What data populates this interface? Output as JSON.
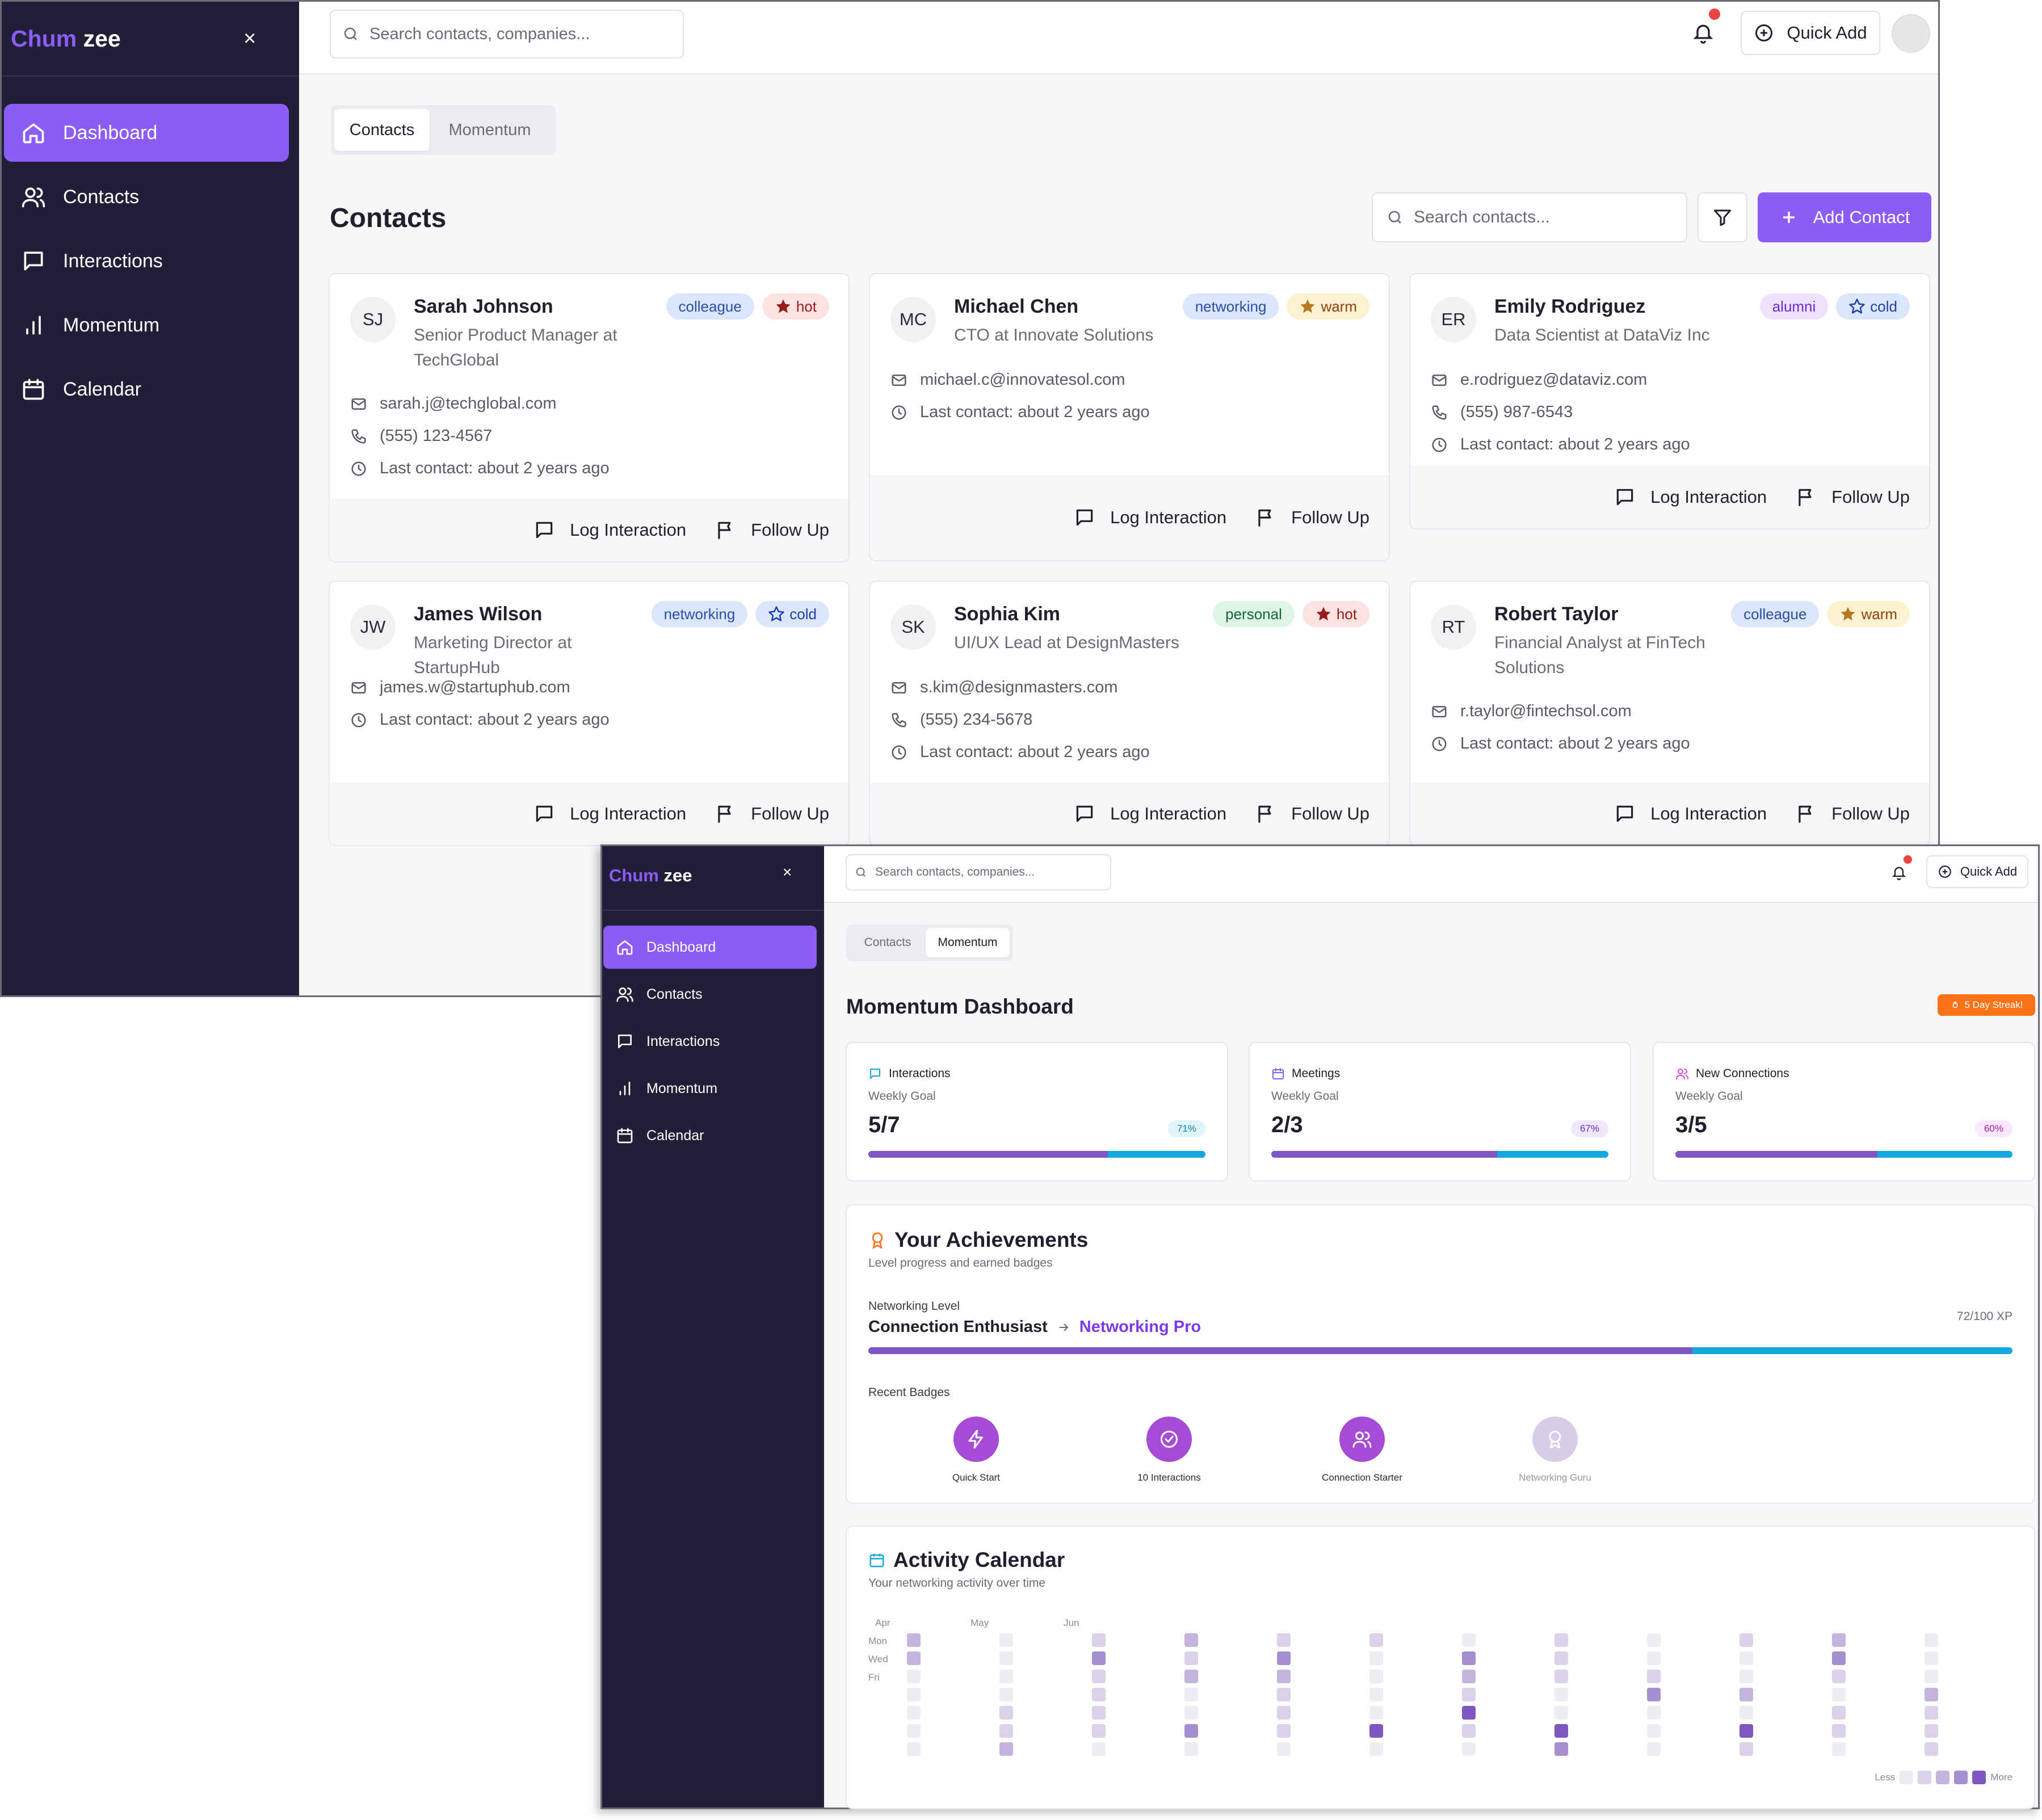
{
  "app": {
    "logo_a": "Chum",
    "logo_b": "zee",
    "close": "×"
  },
  "nav": [
    {
      "label": "Dashboard",
      "icon": "home-icon",
      "active": true
    },
    {
      "label": "Contacts",
      "icon": "users-icon",
      "active": false
    },
    {
      "label": "Interactions",
      "icon": "message-square-icon",
      "active": false
    },
    {
      "label": "Momentum",
      "icon": "bar-chart-icon",
      "active": false
    },
    {
      "label": "Calendar",
      "icon": "calendar-icon",
      "active": false
    }
  ],
  "topbar": {
    "search_placeholder": "Search contacts, companies...",
    "quick_add": "Quick Add"
  },
  "tabs": [
    "Contacts",
    "Momentum"
  ],
  "contacts_page": {
    "title": "Contacts",
    "search_placeholder": "Search contacts...",
    "add_button": "Add Contact",
    "log_label": "Log Interaction",
    "follow_label": "Follow Up",
    "cards": [
      {
        "initials": "SJ",
        "name": "Sarah Johnson",
        "role": "Senior Product Manager at TechGlobal",
        "tag": "colleague",
        "temp": "hot",
        "email": "sarah.j@techglobal.com",
        "phone": "(555) 123-4567",
        "last": "Last contact: about 2 years ago"
      },
      {
        "initials": "MC",
        "name": "Michael Chen",
        "role": "CTO at Innovate Solutions",
        "tag": "networking",
        "temp": "warm",
        "email": "michael.c@innovatesol.com",
        "phone": "",
        "last": "Last contact: about 2 years ago"
      },
      {
        "initials": "ER",
        "name": "Emily Rodriguez",
        "role": "Data Scientist at DataViz Inc",
        "tag": "alumni",
        "temp": "cold",
        "email": "e.rodriguez@dataviz.com",
        "phone": "(555) 987-6543",
        "last": "Last contact: about 2 years ago"
      },
      {
        "initials": "JW",
        "name": "James Wilson",
        "role": "Marketing Director at StartupHub",
        "tag": "networking",
        "temp": "cold",
        "email": "james.w@startuphub.com",
        "phone": "",
        "last": "Last contact: about 2 years ago"
      },
      {
        "initials": "SK",
        "name": "Sophia Kim",
        "role": "UI/UX Lead at DesignMasters",
        "tag": "personal",
        "temp": "hot",
        "email": "s.kim@designmasters.com",
        "phone": "(555) 234-5678",
        "last": "Last contact: about 2 years ago"
      },
      {
        "initials": "RT",
        "name": "Robert Taylor",
        "role": "Financial Analyst at FinTech Solutions",
        "tag": "colleague",
        "temp": "warm",
        "email": "r.taylor@fintechsol.com",
        "phone": "",
        "last": "Last contact: about 2 years ago"
      }
    ]
  },
  "momentum": {
    "title": "Momentum Dashboard",
    "streak": "5 Day Streak!",
    "stats": [
      {
        "name": "Interactions",
        "sub": "Weekly Goal",
        "value": "5/7",
        "pct": "71%",
        "progress": 0.71,
        "icon": "message-square-icon",
        "icon_color": "#13a9e0",
        "pct_bg": "#e0f4fb",
        "pct_color": "#0e7fa8"
      },
      {
        "name": "Meetings",
        "sub": "Weekly Goal",
        "value": "2/3",
        "pct": "67%",
        "progress": 0.67,
        "icon": "calendar-icon",
        "icon_color": "#8b5cf6",
        "pct_bg": "#efe8fd",
        "pct_color": "#6d28d9"
      },
      {
        "name": "New Connections",
        "sub": "Weekly Goal",
        "value": "3/5",
        "pct": "60%",
        "progress": 0.6,
        "icon": "users-icon",
        "icon_color": "#d946ef",
        "pct_bg": "#fbe7fd",
        "pct_color": "#a21caf"
      }
    ],
    "achievements": {
      "title": "Your Achievements",
      "subtitle": "Level progress and earned badges",
      "level_label": "Networking Level",
      "current": "Connection Enthusiast",
      "next": "Networking Pro",
      "xp": "72/100 XP",
      "progress": 0.72,
      "badges_label": "Recent Badges",
      "badges": [
        {
          "label": "Quick Start",
          "icon": "zap-icon",
          "locked": false
        },
        {
          "label": "10 Interactions",
          "icon": "check-circle-icon",
          "locked": false
        },
        {
          "label": "Connection Starter",
          "icon": "users-icon",
          "locked": false
        },
        {
          "label": "Networking Guru",
          "icon": "award-icon",
          "locked": true
        }
      ]
    },
    "calendar": {
      "title": "Activity Calendar",
      "subtitle": "Your networking activity over time",
      "months": [
        "Apr",
        "May",
        "Jun"
      ],
      "days": [
        "Mon",
        "Wed",
        "Fri"
      ],
      "legend_less": "Less",
      "legend_more": "More",
      "levels": [
        [
          2,
          2,
          0,
          0,
          0,
          0,
          0
        ],
        [
          0,
          0,
          0,
          0,
          1,
          1,
          2
        ],
        [
          1,
          3,
          1,
          1,
          1,
          1,
          0
        ],
        [
          2,
          1,
          2,
          0,
          0,
          3,
          0
        ],
        [
          1,
          3,
          2,
          1,
          1,
          1,
          0
        ],
        [
          1,
          0,
          0,
          0,
          0,
          4,
          0
        ],
        [
          0,
          3,
          2,
          1,
          4,
          1,
          0
        ],
        [
          1,
          1,
          1,
          0,
          0,
          4,
          3
        ],
        [
          0,
          0,
          1,
          3,
          0,
          0,
          0
        ],
        [
          1,
          0,
          0,
          2,
          0,
          4,
          1
        ],
        [
          2,
          3,
          1,
          0,
          1,
          1,
          0
        ],
        [
          0,
          0,
          0,
          2,
          1,
          1,
          1
        ]
      ]
    }
  }
}
